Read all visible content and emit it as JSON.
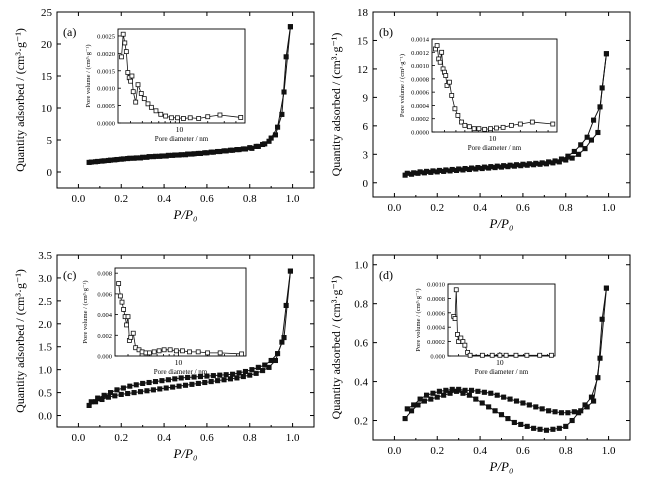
{
  "figure": {
    "axis_labels": {
      "x_main": "P/P₀",
      "y_main": "Quantity adsorbed / (cm³·g⁻¹)",
      "x_inset": "Pore diameter / nm",
      "y_inset": "Pore volume / (cm³·g⁻¹)"
    }
  },
  "chart_data": [
    {
      "panel": "(a)",
      "type": "line",
      "xlabel": "P/P₀",
      "ylabel": "Quantity adsorbed / (cm³·g⁻¹)",
      "xlim": [
        -0.1,
        1.1
      ],
      "ylim": [
        -2.5,
        25
      ],
      "xticks": [
        0.0,
        0.2,
        0.4,
        0.6,
        0.8,
        1.0
      ],
      "xtick_labels": [
        "0.0",
        "0.2",
        "0.4",
        "0.6",
        "0.8",
        "1.0"
      ],
      "yticks": [
        0,
        5,
        10,
        15,
        20,
        25
      ],
      "ytick_labels": [
        "0",
        "5",
        "10",
        "15",
        "20",
        "25"
      ],
      "series": [
        {
          "marker": "filled-square",
          "x": [
            0.05,
            0.08,
            0.11,
            0.14,
            0.17,
            0.2,
            0.23,
            0.26,
            0.29,
            0.32,
            0.35,
            0.38,
            0.41,
            0.44,
            0.47,
            0.5,
            0.53,
            0.56,
            0.59,
            0.62,
            0.65,
            0.68,
            0.71,
            0.74,
            0.77,
            0.8,
            0.83,
            0.86,
            0.89,
            0.92,
            0.95,
            0.97,
            0.99
          ],
          "y": [
            1.5,
            1.6,
            1.7,
            1.8,
            1.9,
            2.0,
            2.1,
            2.15,
            2.2,
            2.3,
            2.4,
            2.45,
            2.5,
            2.6,
            2.65,
            2.7,
            2.8,
            2.9,
            3.0,
            3.1,
            3.2,
            3.3,
            3.4,
            3.5,
            3.6,
            3.8,
            4.0,
            4.3,
            4.8,
            5.8,
            9.0,
            18.0,
            22.7
          ]
        },
        {
          "marker": "filled-square",
          "x": [
            0.99,
            0.96,
            0.93,
            0.9,
            0.87,
            0.84,
            0.81,
            0.78,
            0.75,
            0.72,
            0.69,
            0.66,
            0.63,
            0.6,
            0.57,
            0.54,
            0.51,
            0.48,
            0.45,
            0.42,
            0.39,
            0.36,
            0.33,
            0.3,
            0.27,
            0.24,
            0.21,
            0.18,
            0.15,
            0.12,
            0.09,
            0.06
          ],
          "y": [
            22.7,
            12.5,
            7.0,
            5.3,
            4.4,
            4.0,
            3.7,
            3.6,
            3.5,
            3.4,
            3.3,
            3.2,
            3.1,
            3.0,
            2.9,
            2.85,
            2.8,
            2.7,
            2.65,
            2.6,
            2.5,
            2.45,
            2.4,
            2.3,
            2.2,
            2.15,
            2.05,
            1.95,
            1.85,
            1.75,
            1.65,
            1.55
          ]
        }
      ],
      "inset": {
        "type": "line",
        "xlabel": "Pore diameter / nm",
        "ylabel": "Pore volume / (cm³·g⁻¹)",
        "scale_x": "log",
        "xlim": [
          2.2,
          50
        ],
        "ylim": [
          0,
          0.0027
        ],
        "xtick_labels": [
          "10"
        ],
        "yticks": [
          0,
          0.0005,
          0.001,
          0.0015,
          0.002,
          0.0025
        ],
        "ytick_labels": [
          "0.0000",
          "0.0005",
          "0.0010",
          "0.0015",
          "0.0020",
          "0.0025"
        ],
        "x": [
          2.4,
          2.5,
          2.6,
          2.7,
          2.8,
          2.9,
          3.0,
          3.1,
          3.2,
          3.4,
          3.6,
          3.9,
          4.2,
          4.6,
          5.0,
          5.6,
          6.3,
          7.1,
          8.2,
          9.5,
          11,
          13,
          16,
          20,
          27,
          45
        ],
        "y": [
          0.0019,
          0.00255,
          0.0023,
          0.00205,
          0.00145,
          0.0013,
          0.0012,
          0.00135,
          0.0009,
          0.0006,
          0.0011,
          0.00085,
          0.0007,
          0.00055,
          0.00045,
          0.00035,
          0.00025,
          0.0002,
          0.00015,
          0.00015,
          0.00013,
          0.00015,
          0.00013,
          0.00018,
          0.00023,
          0.00016
        ]
      }
    },
    {
      "panel": "(b)",
      "type": "line",
      "xlabel": "P/P₀",
      "ylabel": "Quantity adsorbed / (cm³·g⁻¹)",
      "xlim": [
        -0.1,
        1.1
      ],
      "ylim": [
        -1.5,
        18
      ],
      "xticks": [
        0.0,
        0.2,
        0.4,
        0.6,
        0.8,
        1.0
      ],
      "xtick_labels": [
        "0.0",
        "0.2",
        "0.4",
        "0.6",
        "0.8",
        "1.0"
      ],
      "yticks": [
        0,
        3,
        6,
        9,
        12,
        15,
        18
      ],
      "ytick_labels": [
        "0",
        "3",
        "6",
        "9",
        "12",
        "15",
        "18"
      ],
      "series": [
        {
          "marker": "filled-square",
          "x": [
            0.05,
            0.08,
            0.11,
            0.14,
            0.17,
            0.2,
            0.23,
            0.26,
            0.29,
            0.32,
            0.35,
            0.38,
            0.41,
            0.44,
            0.47,
            0.5,
            0.53,
            0.56,
            0.59,
            0.62,
            0.65,
            0.68,
            0.71,
            0.74,
            0.77,
            0.8,
            0.83,
            0.86,
            0.89,
            0.92,
            0.95,
            0.97,
            0.99
          ],
          "y": [
            0.8,
            0.9,
            1.0,
            1.05,
            1.1,
            1.15,
            1.2,
            1.25,
            1.3,
            1.35,
            1.4,
            1.45,
            1.5,
            1.55,
            1.6,
            1.65,
            1.7,
            1.75,
            1.8,
            1.85,
            1.9,
            1.95,
            2.0,
            2.1,
            2.2,
            2.4,
            2.6,
            3.0,
            3.6,
            4.5,
            5.3,
            10.0,
            13.6
          ]
        },
        {
          "marker": "filled-square",
          "x": [
            0.99,
            0.96,
            0.93,
            0.9,
            0.87,
            0.84,
            0.81,
            0.78,
            0.75,
            0.72,
            0.69,
            0.66,
            0.63,
            0.6,
            0.57,
            0.54,
            0.51,
            0.48,
            0.45,
            0.42,
            0.39,
            0.36,
            0.33,
            0.3,
            0.27,
            0.24,
            0.21,
            0.18,
            0.15,
            0.12,
            0.09,
            0.06
          ],
          "y": [
            13.6,
            8.0,
            6.6,
            4.8,
            4.0,
            3.3,
            2.8,
            2.5,
            2.3,
            2.2,
            2.1,
            2.05,
            2.0,
            1.95,
            1.9,
            1.85,
            1.8,
            1.75,
            1.7,
            1.65,
            1.6,
            1.55,
            1.5,
            1.45,
            1.4,
            1.35,
            1.3,
            1.25,
            1.2,
            1.15,
            1.05,
            1.0
          ]
        }
      ],
      "inset": {
        "type": "line",
        "xlabel": "Pore diameter / nm",
        "ylabel": "Pore volume / (cm³·g⁻¹)",
        "scale_x": "log",
        "xlim": [
          2.2,
          50
        ],
        "ylim": [
          0,
          0.0014
        ],
        "xtick_labels": [
          "10"
        ],
        "yticks": [
          0,
          0.0002,
          0.0004,
          0.0006,
          0.0008,
          0.001,
          0.0012,
          0.0014
        ],
        "ytick_labels": [
          "0.0000",
          "0.0002",
          "0.0004",
          "0.0006",
          "0.0008",
          "0.0010",
          "0.0012",
          "0.0014"
        ],
        "x": [
          2.4,
          2.5,
          2.6,
          2.7,
          2.8,
          2.9,
          3.0,
          3.1,
          3.2,
          3.4,
          3.6,
          3.9,
          4.2,
          4.6,
          5.0,
          5.6,
          6.3,
          7.1,
          8.2,
          9.5,
          11,
          13,
          16,
          20,
          27,
          45
        ],
        "y": [
          0.00125,
          0.0013,
          0.0011,
          0.00105,
          0.0012,
          0.00095,
          0.0009,
          0.00085,
          0.0007,
          0.00075,
          0.00055,
          0.00035,
          0.00025,
          0.00015,
          0.0001,
          8e-05,
          5e-05,
          5e-05,
          4e-05,
          5e-05,
          6e-05,
          7e-05,
          0.0001,
          0.00012,
          0.00015,
          0.00012
        ]
      }
    },
    {
      "panel": "(c)",
      "type": "line",
      "xlabel": "P/P₀",
      "ylabel": "Quantity adsorbed / (cm³·g⁻¹)",
      "xlim": [
        -0.1,
        1.1
      ],
      "ylim": [
        -0.25,
        3.5
      ],
      "xticks": [
        0.0,
        0.2,
        0.4,
        0.6,
        0.8,
        1.0
      ],
      "xtick_labels": [
        "0.0",
        "0.2",
        "0.4",
        "0.6",
        "0.8",
        "1.0"
      ],
      "yticks": [
        0,
        0.5,
        1.0,
        1.5,
        2.0,
        2.5,
        3.0,
        3.5
      ],
      "ytick_labels": [
        "0.0",
        "0.5",
        "1.0",
        "1.5",
        "2.0",
        "2.5",
        "3.0",
        "3.5"
      ],
      "series": [
        {
          "marker": "filled-square",
          "x": [
            0.05,
            0.08,
            0.11,
            0.14,
            0.17,
            0.2,
            0.23,
            0.26,
            0.29,
            0.32,
            0.35,
            0.38,
            0.41,
            0.44,
            0.47,
            0.5,
            0.53,
            0.56,
            0.59,
            0.62,
            0.65,
            0.68,
            0.71,
            0.74,
            0.77,
            0.8,
            0.83,
            0.86,
            0.89,
            0.92,
            0.95,
            0.97,
            0.99
          ],
          "y": [
            0.22,
            0.3,
            0.35,
            0.4,
            0.43,
            0.46,
            0.48,
            0.5,
            0.52,
            0.54,
            0.56,
            0.58,
            0.6,
            0.62,
            0.64,
            0.66,
            0.68,
            0.7,
            0.72,
            0.74,
            0.76,
            0.78,
            0.8,
            0.82,
            0.85,
            0.88,
            0.92,
            0.98,
            1.05,
            1.2,
            1.6,
            2.4,
            3.15
          ]
        },
        {
          "marker": "filled-square",
          "x": [
            0.99,
            0.96,
            0.93,
            0.9,
            0.87,
            0.84,
            0.81,
            0.78,
            0.75,
            0.72,
            0.69,
            0.66,
            0.63,
            0.6,
            0.57,
            0.54,
            0.51,
            0.48,
            0.45,
            0.42,
            0.39,
            0.36,
            0.33,
            0.3,
            0.27,
            0.24,
            0.21,
            0.18,
            0.15,
            0.12,
            0.09,
            0.06
          ],
          "y": [
            3.15,
            1.7,
            1.35,
            1.2,
            1.1,
            1.05,
            1.0,
            0.96,
            0.93,
            0.9,
            0.89,
            0.88,
            0.87,
            0.86,
            0.85,
            0.84,
            0.83,
            0.82,
            0.8,
            0.78,
            0.76,
            0.74,
            0.72,
            0.7,
            0.67,
            0.64,
            0.6,
            0.56,
            0.5,
            0.44,
            0.38,
            0.3
          ]
        }
      ],
      "inset": {
        "type": "line",
        "xlabel": "Pore diameter / nm",
        "ylabel": "Pore volume / (cm³·g⁻¹)",
        "scale_x": "log",
        "xlim": [
          2.2,
          50
        ],
        "ylim": [
          0,
          0.0085
        ],
        "xtick_labels": [
          "10"
        ],
        "yticks": [
          0,
          0.002,
          0.004,
          0.006,
          0.008
        ],
        "ytick_labels": [
          "0.000",
          "0.002",
          "0.004",
          "0.006",
          "0.008"
        ],
        "x": [
          2.4,
          2.5,
          2.6,
          2.7,
          2.8,
          2.9,
          3.0,
          3.1,
          3.2,
          3.4,
          3.6,
          3.9,
          4.2,
          4.6,
          5.0,
          5.6,
          6.3,
          7.1,
          8.2,
          9.5,
          11,
          13,
          16,
          20,
          27,
          45
        ],
        "y": [
          0.007,
          0.0058,
          0.0052,
          0.0045,
          0.0038,
          0.003,
          0.0038,
          0.0015,
          0.0018,
          0.0022,
          0.0008,
          0.0006,
          0.0004,
          0.0003,
          0.0003,
          0.0004,
          0.0005,
          0.0006,
          0.0006,
          0.0005,
          0.0005,
          0.0004,
          0.0004,
          0.0003,
          0.0003,
          0.0002
        ]
      }
    },
    {
      "panel": "(d)",
      "type": "line",
      "xlabel": "P/P₀",
      "ylabel": "Quantity adsorbed / (cm³·g⁻¹)",
      "xlim": [
        -0.1,
        1.1
      ],
      "ylim": [
        0.1,
        1.05
      ],
      "xticks": [
        0.0,
        0.2,
        0.4,
        0.6,
        0.8,
        1.0
      ],
      "xtick_labels": [
        "0.0",
        "0.2",
        "0.4",
        "0.6",
        "0.8",
        "1.0"
      ],
      "yticks": [
        0.2,
        0.4,
        0.6,
        0.8,
        1.0
      ],
      "ytick_labels": [
        "0.2",
        "0.4",
        "0.6",
        "0.8",
        "1.0"
      ],
      "series": [
        {
          "marker": "filled-square",
          "x": [
            0.05,
            0.08,
            0.11,
            0.14,
            0.17,
            0.2,
            0.23,
            0.26,
            0.29,
            0.32,
            0.35,
            0.38,
            0.41,
            0.44,
            0.47,
            0.5,
            0.53,
            0.56,
            0.59,
            0.62,
            0.65,
            0.68,
            0.71,
            0.74,
            0.77,
            0.8,
            0.83,
            0.86,
            0.89,
            0.92,
            0.95,
            0.97,
            0.99
          ],
          "y": [
            0.21,
            0.25,
            0.28,
            0.3,
            0.31,
            0.32,
            0.33,
            0.34,
            0.35,
            0.34,
            0.33,
            0.31,
            0.29,
            0.27,
            0.25,
            0.23,
            0.21,
            0.19,
            0.18,
            0.17,
            0.16,
            0.155,
            0.15,
            0.155,
            0.16,
            0.17,
            0.2,
            0.24,
            0.28,
            0.32,
            0.42,
            0.72,
            0.88
          ]
        },
        {
          "marker": "filled-square",
          "x": [
            0.99,
            0.96,
            0.93,
            0.9,
            0.87,
            0.84,
            0.81,
            0.78,
            0.75,
            0.72,
            0.69,
            0.66,
            0.63,
            0.6,
            0.57,
            0.54,
            0.51,
            0.48,
            0.45,
            0.42,
            0.39,
            0.36,
            0.33,
            0.3,
            0.27,
            0.24,
            0.21,
            0.18,
            0.15,
            0.12,
            0.09,
            0.06
          ],
          "y": [
            0.88,
            0.52,
            0.3,
            0.27,
            0.25,
            0.245,
            0.24,
            0.24,
            0.245,
            0.25,
            0.26,
            0.27,
            0.28,
            0.29,
            0.3,
            0.31,
            0.32,
            0.33,
            0.34,
            0.345,
            0.35,
            0.355,
            0.355,
            0.36,
            0.36,
            0.355,
            0.35,
            0.34,
            0.33,
            0.31,
            0.28,
            0.26
          ]
        }
      ],
      "inset": {
        "type": "line",
        "xlabel": "Pore diameter / nm",
        "ylabel": "Pore volume / (cm³·g⁻¹)",
        "scale_x": "log",
        "xlim": [
          2.2,
          50
        ],
        "ylim": [
          0,
          0.001
        ],
        "xtick_labels": [
          "10"
        ],
        "yticks": [
          0,
          0.0002,
          0.0004,
          0.0006,
          0.0008,
          0.001
        ],
        "ytick_labels": [
          "0.000",
          "0.0002",
          "0.0004",
          "0.0006",
          "0.0008",
          "0.0010"
        ],
        "x": [
          2.6,
          2.7,
          2.8,
          2.9,
          3.0,
          3.2,
          3.4,
          3.6,
          3.9,
          4.2,
          6,
          8,
          10,
          12,
          16,
          22,
          32,
          45
        ],
        "y": [
          0.00055,
          0.00052,
          0.00092,
          0.0003,
          0.0002,
          0.00025,
          0.0002,
          0.00015,
          5e-05,
          1e-05,
          1e-05,
          1e-05,
          1e-05,
          1e-05,
          1e-05,
          1e-05,
          1e-05,
          1e-05
        ]
      }
    }
  ]
}
